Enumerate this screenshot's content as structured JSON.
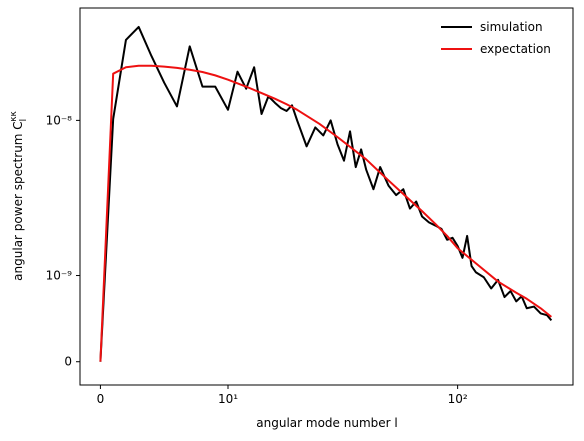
{
  "chart_data": {
    "type": "line",
    "x_label": "angular mode number l",
    "y_label": {
      "text": "angular power spectrum C",
      "subscript": "l",
      "superscript": "κκ"
    },
    "xscale": "symlog",
    "yscale": "symlog",
    "xlim": [
      -1.6,
      318
    ],
    "ylim": [
      -2.7e-10,
      5.3e-08
    ],
    "xticks": [
      0,
      {
        "value": 10,
        "label": "10¹"
      },
      {
        "value": 100,
        "label": "10²"
      }
    ],
    "yticks": [
      0,
      {
        "value": 1e-09,
        "label": "10⁻⁹"
      },
      {
        "value": 1e-08,
        "label": "10⁻⁸"
      }
    ],
    "legend": "upper right",
    "series": [
      {
        "name": "simulation",
        "color": "#000000",
        "x": [
          0,
          1,
          2,
          3,
          4,
          5,
          6,
          7,
          8,
          9,
          10,
          11,
          12,
          13,
          14,
          15,
          16,
          17,
          18,
          19,
          20,
          22,
          24,
          26,
          28,
          30,
          32,
          34,
          36,
          38,
          40,
          43,
          46,
          50,
          54,
          58,
          62,
          66,
          70,
          75,
          80,
          85,
          90,
          95,
          100,
          105,
          110,
          115,
          120,
          130,
          140,
          150,
          160,
          170,
          180,
          190,
          200,
          215,
          230,
          245,
          256
        ],
        "values": [
          0,
          1.02e-08,
          3.3e-08,
          4e-08,
          2.6e-08,
          1.75e-08,
          1.23e-08,
          3e-08,
          1.65e-08,
          1.65e-08,
          1.17e-08,
          2.06e-08,
          1.6e-08,
          2.2e-08,
          1.1e-08,
          1.43e-08,
          1.3e-08,
          1.2e-08,
          1.15e-08,
          1.25e-08,
          1e-08,
          6.8e-09,
          9e-09,
          8e-09,
          1e-08,
          7e-09,
          5.5e-09,
          8.5e-09,
          5e-09,
          6.5e-09,
          4.8e-09,
          3.6e-09,
          5e-09,
          3.8e-09,
          3.3e-09,
          3.6e-09,
          2.7e-09,
          3e-09,
          2.4e-09,
          2.2e-09,
          2.1e-09,
          2e-09,
          1.7e-09,
          1.75e-09,
          1.55e-09,
          1.3e-09,
          1.8e-09,
          1.15e-09,
          1.05e-09,
          9.8e-10,
          8.5e-10,
          9.5e-10,
          7.5e-10,
          8.2e-10,
          7e-10,
          7.6e-10,
          6.2e-10,
          6.4e-10,
          5.6e-10,
          5.4e-10,
          4.8e-10
        ]
      },
      {
        "name": "expectation",
        "color": "#ee1111",
        "x": [
          0,
          1,
          2,
          3,
          4,
          5,
          6,
          7,
          8,
          9,
          10,
          12,
          14,
          16,
          18,
          20,
          25,
          30,
          40,
          50,
          60,
          70,
          80,
          90,
          100,
          120,
          150,
          180,
          200,
          230,
          256
        ],
        "values": [
          0,
          2e-08,
          2.2e-08,
          2.25e-08,
          2.25e-08,
          2.22e-08,
          2.18e-08,
          2.12e-08,
          2.05e-08,
          1.95e-08,
          1.83e-08,
          1.65e-08,
          1.5e-08,
          1.38e-08,
          1.27e-08,
          1.17e-08,
          9.5e-09,
          7.8e-09,
          5.6e-09,
          4.1e-09,
          3.2e-09,
          2.6e-09,
          2.15e-09,
          1.8e-09,
          1.5e-09,
          1.2e-09,
          9.3e-10,
          8e-10,
          7.3e-10,
          6.2e-10,
          5.2e-10
        ]
      }
    ]
  }
}
